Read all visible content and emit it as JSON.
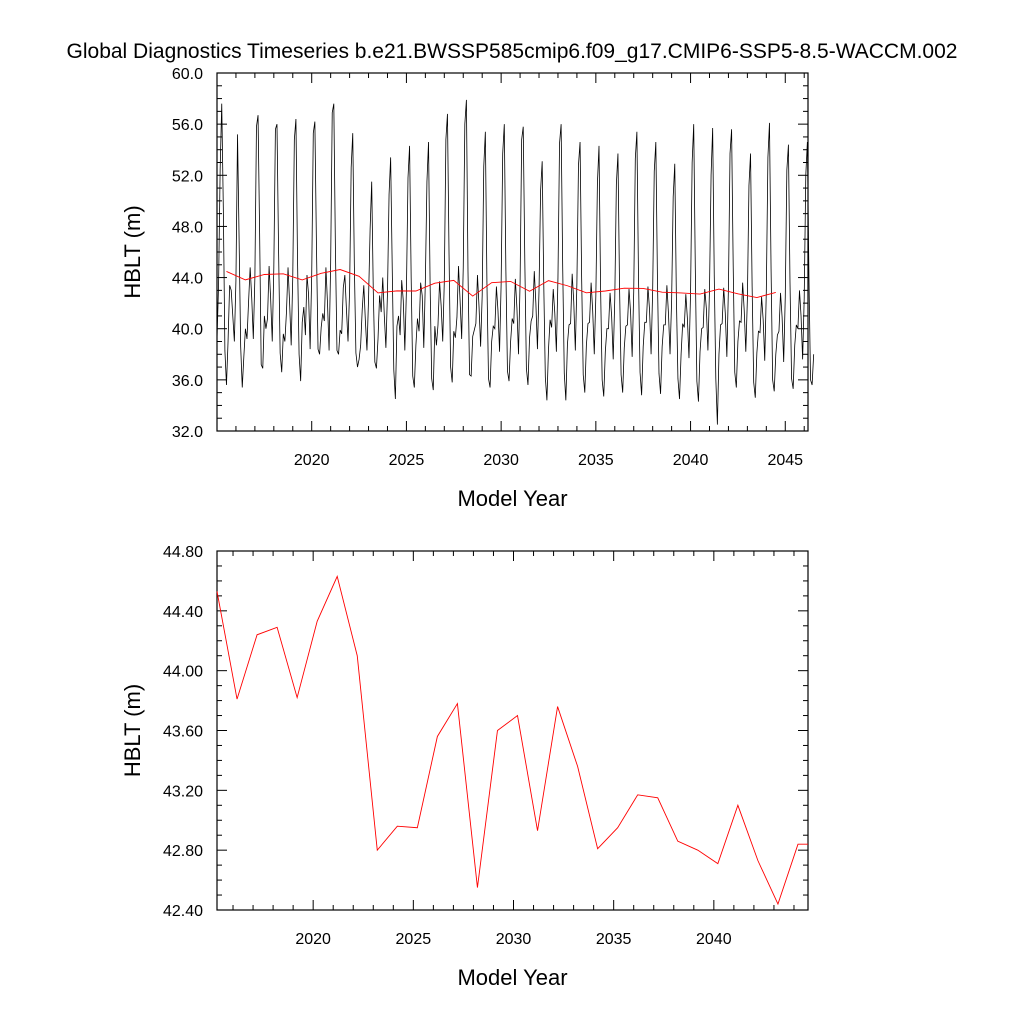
{
  "figure_title": "Global Diagnostics Timeseries b.e21.BWSSP585cmip6.f09_g17.CMIP6-SSP5-8.5-WACCM.002",
  "colors": {
    "monthly": "#000000",
    "annual": "#ff0000",
    "frame": "#000000"
  },
  "chart_data": [
    {
      "type": "line",
      "title": "Global Diagnostics Timeseries b.e21.BWSSP585cmip6.f09_g17.CMIP6-SSP5-8.5-WACCM.002",
      "xlabel": "Model Year",
      "ylabel": "HBLT (m)",
      "xlim": [
        2015,
        2046.2
      ],
      "ylim": [
        32.0,
        60.0
      ],
      "xticks": [
        2020,
        2025,
        2030,
        2035,
        2040,
        2045
      ],
      "yticks": [
        "32.0",
        "36.0",
        "40.0",
        "44.0",
        "48.0",
        "52.0",
        "56.0",
        "60.0"
      ],
      "grid": false,
      "series": [
        {
          "color": "#000000",
          "start_year": 2015.0,
          "resolution": "monthly",
          "values": [
            39.1,
            43.5,
            52.5,
            57.6,
            49.5,
            38.3,
            35.6,
            39.0,
            43.4,
            43.0,
            41.0,
            39.0,
            43.8,
            55.2,
            47.0,
            38.6,
            35.4,
            37.8,
            40.0,
            39.2,
            42.1,
            44.8,
            42.4,
            39.2,
            44.0,
            55.8,
            56.7,
            47.5,
            37.2,
            36.9,
            41.0,
            40.0,
            40.8,
            44.9,
            42.3,
            39.0,
            44.8,
            55.6,
            56.0,
            46.2,
            38.1,
            36.6,
            39.6,
            39.0,
            41.3,
            44.8,
            42.0,
            38.7,
            44.1,
            54.8,
            56.4,
            45.5,
            38.0,
            35.9,
            40.5,
            41.7,
            39.5,
            44.2,
            42.7,
            38.4,
            44.2,
            55.3,
            56.2,
            46.5,
            38.4,
            38.0,
            40.1,
            41.2,
            40.6,
            44.8,
            42.0,
            38.3,
            45.1,
            56.9,
            57.6,
            46.4,
            38.3,
            38.0,
            39.9,
            39.6,
            43.2,
            44.2,
            41.5,
            39.0,
            43.0,
            52.6,
            55.3,
            45.0,
            38.1,
            37.0,
            37.6,
            38.7,
            41.5,
            43.4,
            40.6,
            38.3,
            42.3,
            47.8,
            51.5,
            43.0,
            37.4,
            36.9,
            39.2,
            42.6,
            41.3,
            44.0,
            41.0,
            38.5,
            42.8,
            50.5,
            53.4,
            44.8,
            36.8,
            34.5,
            40.2,
            41.0,
            39.5,
            43.8,
            42.2,
            38.3,
            43.0,
            51.8,
            54.3,
            44.0,
            36.3,
            35.4,
            38.7,
            40.8,
            39.8,
            43.6,
            42.6,
            38.5,
            43.8,
            51.5,
            54.6,
            43.5,
            36.1,
            35.2,
            40.2,
            38.7,
            40.3,
            43.7,
            41.8,
            39.0,
            43.7,
            54.8,
            56.8,
            45.8,
            37.0,
            35.8,
            39.8,
            39.3,
            40.9,
            44.9,
            42.2,
            39.2,
            44.8,
            56.0,
            57.9,
            44.5,
            36.4,
            36.3,
            39.4,
            39.9,
            40.4,
            44.2,
            41.7,
            38.6,
            42.6,
            52.7,
            55.4,
            43.6,
            36.1,
            35.4,
            39.0,
            40.2,
            40.0,
            43.3,
            41.4,
            38.2,
            43.5,
            53.7,
            56.0,
            44.6,
            36.7,
            35.9,
            39.0,
            40.8,
            40.4,
            43.9,
            41.6,
            38.0,
            43.6,
            54.8,
            55.8,
            45.3,
            36.9,
            35.6,
            39.3,
            40.6,
            41.0,
            44.5,
            42.0,
            38.4,
            43.0,
            50.8,
            53.1,
            43.5,
            36.2,
            34.4,
            38.4,
            40.7,
            40.1,
            43.1,
            41.2,
            38.2,
            44.0,
            54.5,
            56.0,
            44.8,
            36.5,
            34.4,
            38.8,
            40.3,
            40.4,
            44.3,
            42.1,
            38.3,
            43.6,
            52.8,
            54.6,
            44.0,
            36.4,
            35.0,
            38.7,
            40.4,
            40.5,
            43.6,
            41.4,
            38.0,
            42.6,
            51.4,
            54.3,
            43.2,
            36.0,
            34.7,
            38.2,
            40.0,
            40.0,
            42.8,
            41.0,
            37.6,
            42.4,
            51.3,
            53.7,
            43.4,
            36.4,
            35.0,
            38.5,
            40.2,
            40.3,
            43.1,
            41.3,
            37.8,
            42.9,
            53.3,
            55.4,
            44.2,
            36.6,
            34.8,
            38.6,
            40.5,
            40.5,
            43.3,
            41.5,
            38.0,
            43.0,
            52.3,
            54.6,
            44.1,
            36.5,
            34.9,
            38.6,
            40.3,
            40.3,
            43.4,
            41.2,
            38.0,
            42.2,
            50.3,
            52.9,
            42.6,
            36.1,
            34.5,
            38.0,
            40.4,
            40.1,
            42.7,
            40.8,
            37.7,
            42.8,
            53.0,
            56.0,
            44.8,
            35.9,
            34.3,
            38.2,
            40.0,
            40.1,
            43.1,
            41.6,
            38.3,
            43.1,
            52.0,
            55.7,
            44.2,
            36.1,
            32.5,
            38.0,
            40.3,
            40.4,
            43.2,
            41.2,
            37.8,
            43.2,
            53.7,
            55.6,
            45.0,
            36.6,
            35.4,
            39.0,
            40.6,
            40.5,
            43.6,
            41.4,
            38.2,
            42.3,
            51.2,
            53.7,
            43.3,
            35.8,
            34.6,
            38.1,
            39.8,
            39.7,
            42.5,
            40.7,
            37.5,
            43.0,
            53.4,
            56.1,
            44.7,
            36.0,
            35.1,
            38.0,
            39.5,
            39.8,
            42.8,
            40.9,
            37.4,
            42.5,
            52.4,
            54.4,
            43.6,
            36.1,
            35.3,
            38.7,
            40.3,
            40.0,
            43.0,
            41.0,
            37.6,
            42.4,
            52.0,
            54.6,
            44.0,
            36.0,
            35.6,
            38.0
          ]
        },
        {
          "color": "#ff0000",
          "x": [
            2015.5,
            2016.5,
            2017.5,
            2018.5,
            2019.5,
            2020.5,
            2021.5,
            2022.5,
            2023.5,
            2024.5,
            2025.5,
            2026.5,
            2027.5,
            2028.5,
            2029.5,
            2030.5,
            2031.5,
            2032.5,
            2033.5,
            2034.5,
            2035.5,
            2036.5,
            2037.5,
            2038.5,
            2039.5,
            2040.5,
            2041.5,
            2042.5,
            2043.5,
            2044.5
          ],
          "values": [
            44.48,
            43.82,
            44.24,
            44.29,
            43.82,
            44.33,
            44.63,
            44.1,
            42.8,
            42.96,
            42.95,
            43.56,
            43.78,
            42.55,
            43.6,
            43.7,
            42.93,
            43.76,
            43.36,
            42.81,
            42.95,
            43.17,
            43.15,
            42.86,
            42.8,
            42.71,
            43.1,
            42.73,
            42.44,
            42.84
          ]
        }
      ]
    },
    {
      "type": "line",
      "title": "",
      "xlabel": "Model Year",
      "ylabel": "HBLT (m)",
      "xlim": [
        2015.2,
        2044.7
      ],
      "ylim": [
        42.4,
        44.8
      ],
      "xticks": [
        2020,
        2025,
        2030,
        2035,
        2040
      ],
      "yticks": [
        "42.40",
        "42.80",
        "43.20",
        "43.60",
        "44.00",
        "44.40",
        "44.80"
      ],
      "grid": false,
      "series": [
        {
          "color": "#ff0000",
          "x": [
            2015.2,
            2016.2,
            2017.2,
            2018.2,
            2019.2,
            2020.2,
            2021.2,
            2022.2,
            2023.2,
            2024.2,
            2025.2,
            2026.2,
            2027.2,
            2028.2,
            2029.2,
            2030.2,
            2031.2,
            2032.2,
            2033.2,
            2034.2,
            2035.2,
            2036.2,
            2037.2,
            2038.2,
            2039.2,
            2040.2,
            2041.2,
            2042.2,
            2043.2,
            2044.2,
            2044.7
          ],
          "values": [
            44.53,
            43.81,
            44.24,
            44.29,
            43.82,
            44.33,
            44.63,
            44.1,
            42.8,
            42.96,
            42.95,
            43.56,
            43.78,
            42.55,
            43.6,
            43.7,
            42.93,
            43.76,
            43.36,
            42.81,
            42.95,
            43.17,
            43.15,
            42.86,
            42.8,
            42.71,
            43.1,
            42.73,
            42.44,
            42.84,
            42.84
          ]
        }
      ]
    }
  ]
}
